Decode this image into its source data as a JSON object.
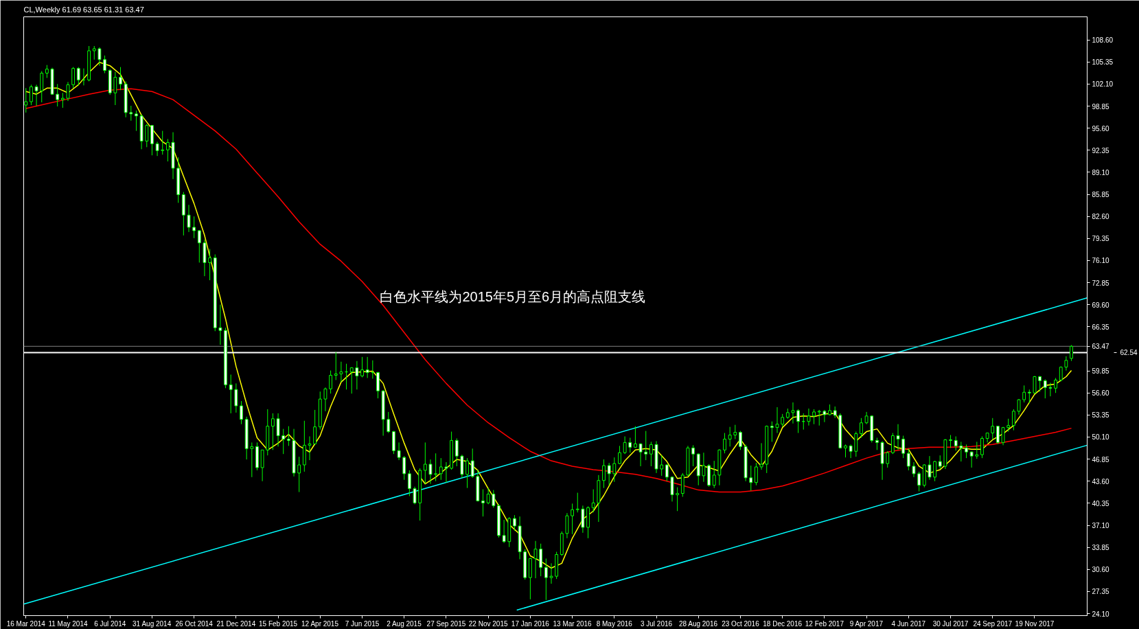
{
  "chart_data": {
    "type": "candlestick",
    "title": "CL,Weekly  61.69 63.65 61.31 63.47",
    "color": "#00ff00",
    "annotations": [
      "白色水平线为2015年5月至6月的高点阻支线"
    ],
    "x": [
      "2014-03-16",
      "2014-03-23",
      "2014-03-30",
      "2014-04-06",
      "2014-04-13",
      "2014-04-20",
      "2014-04-27",
      "2014-05-04",
      "2014-05-11",
      "2014-05-18",
      "2014-05-25",
      "2014-06-01",
      "2014-06-08",
      "2014-06-15",
      "2014-06-22",
      "2014-06-29",
      "2014-07-06",
      "2014-07-13",
      "2014-07-20",
      "2014-07-27",
      "2014-08-03",
      "2014-08-10",
      "2014-08-17",
      "2014-08-24",
      "2014-08-31",
      "2014-09-07",
      "2014-09-14",
      "2014-09-21",
      "2014-09-28",
      "2014-10-05",
      "2014-10-12",
      "2014-10-19",
      "2014-10-26",
      "2014-11-02",
      "2014-11-09",
      "2014-11-16",
      "2014-11-23",
      "2014-11-30",
      "2014-12-07",
      "2014-12-14",
      "2014-12-21",
      "2014-12-28",
      "2015-01-04",
      "2015-01-11",
      "2015-01-18",
      "2015-01-25",
      "2015-02-01",
      "2015-02-08",
      "2015-02-15",
      "2015-02-22",
      "2015-03-01",
      "2015-03-08",
      "2015-03-15",
      "2015-03-22",
      "2015-03-29",
      "2015-04-05",
      "2015-04-12",
      "2015-04-19",
      "2015-04-26",
      "2015-05-03",
      "2015-05-10",
      "2015-05-17",
      "2015-05-24",
      "2015-05-31",
      "2015-06-07",
      "2015-06-14",
      "2015-06-21",
      "2015-06-28",
      "2015-07-05",
      "2015-07-12",
      "2015-07-19",
      "2015-07-26",
      "2015-08-02",
      "2015-08-09",
      "2015-08-16",
      "2015-08-23",
      "2015-08-30",
      "2015-09-06",
      "2015-09-13",
      "2015-09-20",
      "2015-09-27",
      "2015-10-04",
      "2015-10-11",
      "2015-10-18",
      "2015-10-25",
      "2015-11-01",
      "2015-11-08",
      "2015-11-15",
      "2015-11-22",
      "2015-11-29",
      "2015-12-06",
      "2015-12-13",
      "2015-12-20",
      "2015-12-27",
      "2016-01-03",
      "2016-01-10",
      "2016-01-17",
      "2016-01-24",
      "2016-01-31",
      "2016-02-07",
      "2016-02-14",
      "2016-02-21",
      "2016-02-28",
      "2016-03-06",
      "2016-03-13",
      "2016-03-20",
      "2016-03-27",
      "2016-04-03",
      "2016-04-10",
      "2016-04-17",
      "2016-04-24",
      "2016-05-01",
      "2016-05-08",
      "2016-05-15",
      "2016-05-22",
      "2016-05-29",
      "2016-06-05",
      "2016-06-12",
      "2016-06-19",
      "2016-06-26",
      "2016-07-03",
      "2016-07-10",
      "2016-07-17",
      "2016-07-24",
      "2016-07-31",
      "2016-08-07",
      "2016-08-14",
      "2016-08-21",
      "2016-08-28",
      "2016-09-04",
      "2016-09-11",
      "2016-09-18",
      "2016-09-25",
      "2016-10-02",
      "2016-10-09",
      "2016-10-16",
      "2016-10-23",
      "2016-10-30",
      "2016-11-06",
      "2016-11-13",
      "2016-11-20",
      "2016-11-27",
      "2016-12-04",
      "2016-12-11",
      "2016-12-18",
      "2016-12-25",
      "2017-01-01",
      "2017-01-08",
      "2017-01-15",
      "2017-01-22",
      "2017-01-29",
      "2017-02-05",
      "2017-02-12",
      "2017-02-19",
      "2017-02-26",
      "2017-03-05",
      "2017-03-12",
      "2017-03-19",
      "2017-03-26",
      "2017-04-02",
      "2017-04-09",
      "2017-04-16",
      "2017-04-23",
      "2017-04-30",
      "2017-05-07",
      "2017-05-14",
      "2017-05-21",
      "2017-05-28",
      "2017-06-04",
      "2017-06-11",
      "2017-06-18",
      "2017-06-25",
      "2017-07-02",
      "2017-07-09",
      "2017-07-16",
      "2017-07-23",
      "2017-07-30",
      "2017-08-06",
      "2017-08-13",
      "2017-08-20",
      "2017-08-27",
      "2017-09-03",
      "2017-09-10",
      "2017-09-17",
      "2017-09-24",
      "2017-10-01",
      "2017-10-08",
      "2017-10-15",
      "2017-10-22",
      "2017-10-29",
      "2017-11-05",
      "2017-11-12",
      "2017-11-19",
      "2017-11-26",
      "2017-12-03",
      "2017-12-10",
      "2017-12-17",
      "2017-12-24",
      "2017-12-31",
      "2018-01-07"
    ],
    "ohlc": [
      [
        99.0,
        101.5,
        97.9,
        99.5
      ],
      [
        99.5,
        102.0,
        99.0,
        101.7
      ],
      [
        101.7,
        102.0,
        98.9,
        101.1
      ],
      [
        101.1,
        104.0,
        99.4,
        103.7
      ],
      [
        103.7,
        104.9,
        103.0,
        104.3
      ],
      [
        104.3,
        104.5,
        100.5,
        100.6
      ],
      [
        100.6,
        102.1,
        98.8,
        99.8
      ],
      [
        99.8,
        100.8,
        98.6,
        100.0
      ],
      [
        100.0,
        102.4,
        99.6,
        102.0
      ],
      [
        102.0,
        104.6,
        101.5,
        104.4
      ],
      [
        104.4,
        104.6,
        101.9,
        102.7
      ],
      [
        102.7,
        104.4,
        101.9,
        102.7
      ],
      [
        102.7,
        107.7,
        102.5,
        107.0
      ],
      [
        107.0,
        107.7,
        105.7,
        107.3
      ],
      [
        107.3,
        107.5,
        104.8,
        105.7
      ],
      [
        105.7,
        106.3,
        103.7,
        104.1
      ],
      [
        104.1,
        104.3,
        100.5,
        100.8
      ],
      [
        100.8,
        103.9,
        99.0,
        103.1
      ],
      [
        103.1,
        104.6,
        101.2,
        102.1
      ],
      [
        102.1,
        102.5,
        97.2,
        97.9
      ],
      [
        97.9,
        98.9,
        96.7,
        97.7
      ],
      [
        97.7,
        98.2,
        95.2,
        97.4
      ],
      [
        97.4,
        97.6,
        92.5,
        93.7
      ],
      [
        93.7,
        96.2,
        92.8,
        96.0
      ],
      [
        96.0,
        96.0,
        91.6,
        93.3
      ],
      [
        93.3,
        93.6,
        91.5,
        92.3
      ],
      [
        92.3,
        95.2,
        91.7,
        92.4
      ],
      [
        92.4,
        94.0,
        90.7,
        93.5
      ],
      [
        93.5,
        95.0,
        88.1,
        89.7
      ],
      [
        89.7,
        91.3,
        84.6,
        85.8
      ],
      [
        85.8,
        86.2,
        79.8,
        82.8
      ],
      [
        82.8,
        84.3,
        80.3,
        81.0
      ],
      [
        81.0,
        82.6,
        79.4,
        80.5
      ],
      [
        80.5,
        80.6,
        75.8,
        78.7
      ],
      [
        78.7,
        79.2,
        73.8,
        75.8
      ],
      [
        75.8,
        77.8,
        73.2,
        76.5
      ],
      [
        76.5,
        77.0,
        65.7,
        66.2
      ],
      [
        66.2,
        69.6,
        63.7,
        65.8
      ],
      [
        65.8,
        66.2,
        57.3,
        57.8
      ],
      [
        57.8,
        59.3,
        53.6,
        57.1
      ],
      [
        57.1,
        58.0,
        53.7,
        54.7
      ],
      [
        54.7,
        55.4,
        52.0,
        52.7
      ],
      [
        52.7,
        53.1,
        46.8,
        48.4
      ],
      [
        48.4,
        49.3,
        44.2,
        48.7
      ],
      [
        48.7,
        49.3,
        45.2,
        45.6
      ],
      [
        45.6,
        48.2,
        43.6,
        48.2
      ],
      [
        48.2,
        54.2,
        47.4,
        51.7
      ],
      [
        51.7,
        53.6,
        48.2,
        52.8
      ],
      [
        52.8,
        53.6,
        48.7,
        50.3
      ],
      [
        50.3,
        51.3,
        47.6,
        49.8
      ],
      [
        49.8,
        51.7,
        48.8,
        49.6
      ],
      [
        49.6,
        51.3,
        44.3,
        44.8
      ],
      [
        44.8,
        47.2,
        42.0,
        46.0
      ],
      [
        46.0,
        52.5,
        45.0,
        48.9
      ],
      [
        48.9,
        50.2,
        46.7,
        49.1
      ],
      [
        49.1,
        54.1,
        49.0,
        51.6
      ],
      [
        51.6,
        56.8,
        51.2,
        55.7
      ],
      [
        55.7,
        57.4,
        53.9,
        57.2
      ],
      [
        57.2,
        59.9,
        56.5,
        59.2
      ],
      [
        59.2,
        62.6,
        58.5,
        59.4
      ],
      [
        59.4,
        61.2,
        58.2,
        59.7
      ],
      [
        59.7,
        60.9,
        57.1,
        59.7
      ],
      [
        59.7,
        60.4,
        56.5,
        60.3
      ],
      [
        60.3,
        61.3,
        57.1,
        59.1
      ],
      [
        59.1,
        61.9,
        58.9,
        60.0
      ],
      [
        60.0,
        61.9,
        58.8,
        59.6
      ],
      [
        59.6,
        61.4,
        58.7,
        59.6
      ],
      [
        59.6,
        59.7,
        55.8,
        56.9
      ],
      [
        56.9,
        57.0,
        50.3,
        52.7
      ],
      [
        52.7,
        53.8,
        50.7,
        50.9
      ],
      [
        50.9,
        51.0,
        47.6,
        48.1
      ],
      [
        48.1,
        49.3,
        46.7,
        47.1
      ],
      [
        47.1,
        47.3,
        43.8,
        44.7
      ],
      [
        44.7,
        45.2,
        41.4,
        42.5
      ],
      [
        42.5,
        42.8,
        40.2,
        40.4
      ],
      [
        40.4,
        45.5,
        37.8,
        45.2
      ],
      [
        45.2,
        49.3,
        43.2,
        46.1
      ],
      [
        46.1,
        46.8,
        43.2,
        44.6
      ],
      [
        44.6,
        47.7,
        43.6,
        44.7
      ],
      [
        44.7,
        47.0,
        43.8,
        45.7
      ],
      [
        45.7,
        46.4,
        43.4,
        45.5
      ],
      [
        45.5,
        50.9,
        45.3,
        49.6
      ],
      [
        49.6,
        49.9,
        45.8,
        47.3
      ],
      [
        47.3,
        47.5,
        44.1,
        44.6
      ],
      [
        44.6,
        47.0,
        42.6,
        46.6
      ],
      [
        46.6,
        48.4,
        44.1,
        44.3
      ],
      [
        44.3,
        45.3,
        40.6,
        40.7
      ],
      [
        40.7,
        42.4,
        38.4,
        40.4
      ],
      [
        40.4,
        42.6,
        40.2,
        41.7
      ],
      [
        41.7,
        42.3,
        39.7,
        40.0
      ],
      [
        40.0,
        40.2,
        35.3,
        35.6
      ],
      [
        35.6,
        37.9,
        34.5,
        34.7
      ],
      [
        34.7,
        38.3,
        33.9,
        38.1
      ],
      [
        38.1,
        38.6,
        36.3,
        37.0
      ],
      [
        37.0,
        38.4,
        32.1,
        33.2
      ],
      [
        33.2,
        33.6,
        29.1,
        29.4
      ],
      [
        29.4,
        32.3,
        26.2,
        32.2
      ],
      [
        32.2,
        34.8,
        29.3,
        33.6
      ],
      [
        33.6,
        34.4,
        29.6,
        30.9
      ],
      [
        30.9,
        32.2,
        26.1,
        29.4
      ],
      [
        29.4,
        31.5,
        28.5,
        29.6
      ],
      [
        29.6,
        33.2,
        29.2,
        32.8
      ],
      [
        32.8,
        36.2,
        32.6,
        35.9
      ],
      [
        35.9,
        38.9,
        35.2,
        38.5
      ],
      [
        38.5,
        40.3,
        35.8,
        39.4
      ],
      [
        39.4,
        41.9,
        39.0,
        39.5
      ],
      [
        39.5,
        40.0,
        36.0,
        36.8
      ],
      [
        36.8,
        39.9,
        35.2,
        39.7
      ],
      [
        39.7,
        42.4,
        39.0,
        40.4
      ],
      [
        40.4,
        44.5,
        37.6,
        43.7
      ],
      [
        43.7,
        46.8,
        42.6,
        45.9
      ],
      [
        45.9,
        46.3,
        43.0,
        44.7
      ],
      [
        44.7,
        47.1,
        43.5,
        46.2
      ],
      [
        46.2,
        48.8,
        46.1,
        47.8
      ],
      [
        47.8,
        50.2,
        47.6,
        49.3
      ],
      [
        49.3,
        50.0,
        47.8,
        48.6
      ],
      [
        48.6,
        51.7,
        48.5,
        49.1
      ],
      [
        49.1,
        49.2,
        45.8,
        47.9
      ],
      [
        47.9,
        51.0,
        46.7,
        47.6
      ],
      [
        47.6,
        49.4,
        45.8,
        49.0
      ],
      [
        49.0,
        49.5,
        44.8,
        45.4
      ],
      [
        45.4,
        47.4,
        44.4,
        46.0
      ],
      [
        46.0,
        46.1,
        43.6,
        44.2
      ],
      [
        44.2,
        44.3,
        40.6,
        41.6
      ],
      [
        41.6,
        42.7,
        39.2,
        41.8
      ],
      [
        41.8,
        44.8,
        41.3,
        44.5
      ],
      [
        44.5,
        48.8,
        44.4,
        48.5
      ],
      [
        48.5,
        48.9,
        45.8,
        47.6
      ],
      [
        47.6,
        47.7,
        43.0,
        44.4
      ],
      [
        44.4,
        47.8,
        43.5,
        45.9
      ],
      [
        45.9,
        46.1,
        42.8,
        43.0
      ],
      [
        43.0,
        46.6,
        42.6,
        44.5
      ],
      [
        44.5,
        48.3,
        43.0,
        48.2
      ],
      [
        48.2,
        50.7,
        47.7,
        49.8
      ],
      [
        49.8,
        51.6,
        48.7,
        50.4
      ],
      [
        50.4,
        51.9,
        49.8,
        50.8
      ],
      [
        50.8,
        51.0,
        48.2,
        48.7
      ],
      [
        48.7,
        49.0,
        43.6,
        44.1
      ],
      [
        44.1,
        45.9,
        42.2,
        43.4
      ],
      [
        43.4,
        46.3,
        43.0,
        45.7
      ],
      [
        45.7,
        49.2,
        45.3,
        46.1
      ],
      [
        46.1,
        51.8,
        44.8,
        51.7
      ],
      [
        51.7,
        52.4,
        49.4,
        51.5
      ],
      [
        51.5,
        54.5,
        50.7,
        52.0
      ],
      [
        52.0,
        53.5,
        51.6,
        53.0
      ],
      [
        53.0,
        54.3,
        52.8,
        53.7
      ],
      [
        53.7,
        55.2,
        52.1,
        54.0
      ],
      [
        54.0,
        54.2,
        50.7,
        52.4
      ],
      [
        52.4,
        53.6,
        51.2,
        52.4
      ],
      [
        52.4,
        54.3,
        51.8,
        53.2
      ],
      [
        53.2,
        54.2,
        52.0,
        53.8
      ],
      [
        53.8,
        54.1,
        51.8,
        53.9
      ],
      [
        53.9,
        54.1,
        52.3,
        53.4
      ],
      [
        53.4,
        54.9,
        53.3,
        54.0
      ],
      [
        54.0,
        54.6,
        52.9,
        53.3
      ],
      [
        53.3,
        53.6,
        48.4,
        48.5
      ],
      [
        48.5,
        49.0,
        47.1,
        48.8
      ],
      [
        48.8,
        49.0,
        47.0,
        48.0
      ],
      [
        48.0,
        50.9,
        47.2,
        50.6
      ],
      [
        50.6,
        52.9,
        50.0,
        52.2
      ],
      [
        52.2,
        53.8,
        52.0,
        53.2
      ],
      [
        53.2,
        53.3,
        49.3,
        49.6
      ],
      [
        49.6,
        50.0,
        48.2,
        49.3
      ],
      [
        49.3,
        49.5,
        43.8,
        46.2
      ],
      [
        46.2,
        48.0,
        45.6,
        47.8
      ],
      [
        47.8,
        50.7,
        47.6,
        50.3
      ],
      [
        50.3,
        52.0,
        48.2,
        49.8
      ],
      [
        49.8,
        50.3,
        47.0,
        47.7
      ],
      [
        47.7,
        48.4,
        45.2,
        45.8
      ],
      [
        45.8,
        46.4,
        44.2,
        44.7
      ],
      [
        44.7,
        45.0,
        42.1,
        43.0
      ],
      [
        43.0,
        46.1,
        42.7,
        46.0
      ],
      [
        46.0,
        47.3,
        43.8,
        44.2
      ],
      [
        44.2,
        46.6,
        43.6,
        46.5
      ],
      [
        46.5,
        47.4,
        45.4,
        45.8
      ],
      [
        45.8,
        49.8,
        45.4,
        49.7
      ],
      [
        49.7,
        50.4,
        48.5,
        49.6
      ],
      [
        49.6,
        50.2,
        48.1,
        48.8
      ],
      [
        48.8,
        49.4,
        46.5,
        48.5
      ],
      [
        48.5,
        49.0,
        47.0,
        47.9
      ],
      [
        47.9,
        48.0,
        45.6,
        47.3
      ],
      [
        47.3,
        49.4,
        46.9,
        47.5
      ],
      [
        47.5,
        50.2,
        47.0,
        49.9
      ],
      [
        49.9,
        50.7,
        49.3,
        50.7
      ],
      [
        50.7,
        52.9,
        49.8,
        51.7
      ],
      [
        51.7,
        51.7,
        49.1,
        49.3
      ],
      [
        49.3,
        51.6,
        48.9,
        51.5
      ],
      [
        51.5,
        52.8,
        50.9,
        51.8
      ],
      [
        51.8,
        54.2,
        51.1,
        53.9
      ],
      [
        53.9,
        55.7,
        53.4,
        55.6
      ],
      [
        55.6,
        57.7,
        55.2,
        56.7
      ],
      [
        56.7,
        57.1,
        55.1,
        56.6
      ],
      [
        56.6,
        59.1,
        56.5,
        59.0
      ],
      [
        59.0,
        59.1,
        56.8,
        58.4
      ],
      [
        58.4,
        58.6,
        55.8,
        57.4
      ],
      [
        57.4,
        58.1,
        56.1,
        57.3
      ],
      [
        57.3,
        58.8,
        56.6,
        58.5
      ],
      [
        58.5,
        60.5,
        58.3,
        60.4
      ],
      [
        60.4,
        62.0,
        59.9,
        61.4
      ],
      [
        61.69,
        63.65,
        61.31,
        63.47
      ]
    ],
    "series": [
      {
        "type": "line",
        "color": "#ffff00",
        "x": [
          "2014-03-16",
          "2014-03-30",
          "2014-04-13",
          "2014-04-27",
          "2014-05-11",
          "2014-05-25",
          "2014-06-08",
          "2014-06-22",
          "2014-07-06",
          "2014-07-20",
          "2014-08-03",
          "2014-08-17",
          "2014-08-31",
          "2014-09-14",
          "2014-09-28",
          "2014-10-12",
          "2014-10-26",
          "2014-11-09",
          "2014-12-07",
          "2014-12-21",
          "2015-01-04",
          "2015-01-18",
          "2015-02-01",
          "2015-02-15",
          "2015-03-01",
          "2015-03-15",
          "2015-03-29",
          "2015-04-12",
          "2015-04-26",
          "2015-05-10",
          "2015-05-24",
          "2015-06-07",
          "2015-06-21",
          "2015-07-05",
          "2015-07-19",
          "2015-08-02",
          "2015-08-16",
          "2015-08-30",
          "2015-09-13",
          "2015-09-27",
          "2015-10-11",
          "2015-10-25",
          "2015-11-08",
          "2015-11-22",
          "2015-12-06",
          "2015-12-20",
          "2016-01-03",
          "2016-01-17",
          "2016-01-31",
          "2016-02-14",
          "2016-02-28",
          "2016-03-13",
          "2016-03-27",
          "2016-04-10",
          "2016-04-24",
          "2016-05-08",
          "2016-05-22",
          "2016-06-05",
          "2016-06-19",
          "2016-07-03",
          "2016-07-17",
          "2016-07-31",
          "2016-08-14",
          "2016-08-28",
          "2016-09-11",
          "2016-09-25",
          "2016-10-09",
          "2016-10-23",
          "2016-11-06",
          "2016-11-20",
          "2016-12-04",
          "2016-12-18",
          "2017-01-01",
          "2017-01-15",
          "2017-01-29",
          "2017-02-12",
          "2017-02-26",
          "2017-03-12",
          "2017-03-26",
          "2017-04-09",
          "2017-04-23",
          "2017-05-07",
          "2017-05-21",
          "2017-06-04",
          "2017-06-18",
          "2017-07-02",
          "2017-07-16",
          "2017-07-30",
          "2017-08-13",
          "2017-08-27",
          "2017-09-10",
          "2017-09-24",
          "2017-10-08",
          "2017-10-22",
          "2017-11-05",
          "2017-11-19",
          "2017-12-03",
          "2017-12-17",
          "2017-12-31",
          "2018-01-07"
        ],
        "values": [
          101.0,
          100.6,
          101.5,
          101.5,
          100.8,
          102.0,
          103.8,
          105.3,
          104.8,
          103.5,
          100.5,
          97.5,
          95.5,
          93.6,
          92.6,
          88.5,
          84.5,
          79.8,
          67.5,
          60.5,
          55.0,
          50.0,
          48.2,
          49.2,
          50.5,
          48.8,
          47.9,
          50.3,
          54.6,
          58.2,
          59.6,
          59.7,
          59.8,
          58.0,
          53.5,
          49.2,
          45.3,
          43.2,
          44.2,
          45.5,
          46.8,
          46.5,
          45.2,
          42.5,
          40.0,
          37.2,
          35.8,
          32.6,
          31.8,
          30.8,
          31.5,
          35.2,
          38.0,
          39.2,
          41.5,
          44.3,
          46.6,
          48.2,
          48.4,
          48.2,
          46.5,
          44.0,
          44.2,
          46.0,
          45.6,
          45.1,
          47.6,
          49.8,
          47.5,
          45.8,
          48.0,
          51.5,
          53.0,
          53.2,
          53.1,
          53.5,
          53.6,
          51.2,
          49.5,
          50.9,
          51.3,
          49.2,
          48.5,
          48.3,
          45.8,
          44.8,
          45.3,
          46.7,
          48.5,
          48.3,
          48.3,
          49.7,
          50.6,
          51.8,
          54.0,
          56.4,
          57.7,
          57.9,
          59.0,
          59.9
        ]
      },
      {
        "type": "line",
        "color": "#ff0000",
        "x": [
          "2014-03-16",
          "2014-04-13",
          "2014-05-11",
          "2014-06-08",
          "2014-07-06",
          "2014-08-03",
          "2014-08-31",
          "2014-09-28",
          "2014-10-26",
          "2014-11-23",
          "2014-12-21",
          "2015-01-18",
          "2015-02-15",
          "2015-03-15",
          "2015-04-12",
          "2015-05-10",
          "2015-06-07",
          "2015-07-05",
          "2015-08-02",
          "2015-08-30",
          "2015-09-27",
          "2015-10-25",
          "2015-11-22",
          "2015-12-20",
          "2016-01-17",
          "2016-02-14",
          "2016-03-13",
          "2016-04-10",
          "2016-05-08",
          "2016-06-05",
          "2016-07-03",
          "2016-07-31",
          "2016-08-28",
          "2016-09-25",
          "2016-10-23",
          "2016-11-20",
          "2016-12-18",
          "2017-01-15",
          "2017-02-12",
          "2017-03-12",
          "2017-04-09",
          "2017-05-07",
          "2017-06-04",
          "2017-07-02",
          "2017-07-30",
          "2017-08-27",
          "2017-09-24",
          "2017-10-22",
          "2017-11-19",
          "2017-12-17",
          "2018-01-07"
        ],
        "values": [
          98.5,
          99.2,
          99.9,
          100.6,
          101.2,
          101.4,
          101.0,
          99.8,
          97.5,
          95.2,
          92.5,
          89.0,
          85.5,
          81.8,
          78.5,
          76.0,
          73.0,
          69.5,
          65.5,
          61.5,
          58.0,
          54.8,
          52.2,
          50.0,
          48.0,
          46.6,
          45.8,
          45.3,
          45.0,
          44.6,
          44.0,
          43.2,
          42.3,
          42.0,
          42.0,
          42.3,
          42.9,
          43.8,
          44.8,
          45.9,
          47.0,
          47.9,
          48.4,
          48.6,
          48.6,
          48.7,
          49.0,
          49.6,
          50.2,
          50.8,
          51.4
        ]
      },
      {
        "type": "line",
        "color": "#00ffff",
        "x": [
          "2014-03-13",
          "2018-01-28"
        ],
        "values": [
          25.5,
          70.6
        ]
      },
      {
        "type": "line",
        "color": "#00ffff",
        "x": [
          "2015-12-30",
          "2018-01-28"
        ],
        "values": [
          24.6,
          48.9
        ]
      }
    ],
    "ref_lines": [
      {
        "axis": "y",
        "value": 63.47,
        "label": "63.47",
        "color": "#808080"
      },
      {
        "axis": "y",
        "value": 62.54,
        "label": "62.54",
        "color": "#ffffff"
      }
    ],
    "xlim": [
      "2014-03-13",
      "2018-01-28"
    ],
    "xticks": [
      {
        "value": "2014-03-16",
        "label": "16 Mar 2014"
      },
      {
        "value": "2014-05-11",
        "label": "11 May 2014"
      },
      {
        "value": "2014-07-06",
        "label": "6 Jul 2014"
      },
      {
        "value": "2014-08-31",
        "label": "31 Aug 2014"
      },
      {
        "value": "2014-10-26",
        "label": "26 Oct 2014"
      },
      {
        "value": "2014-12-21",
        "label": "21 Dec 2014"
      },
      {
        "value": "2015-02-15",
        "label": "15 Feb 2015"
      },
      {
        "value": "2015-04-12",
        "label": "12 Apr 2015"
      },
      {
        "value": "2015-06-07",
        "label": "7 Jun 2015"
      },
      {
        "value": "2015-08-02",
        "label": "2 Aug 2015"
      },
      {
        "value": "2015-09-27",
        "label": "27 Sep 2015"
      },
      {
        "value": "2015-11-22",
        "label": "22 Nov 2015"
      },
      {
        "value": "2016-01-17",
        "label": "17 Jan 2016"
      },
      {
        "value": "2016-03-13",
        "label": "13 Mar 2016"
      },
      {
        "value": "2016-05-08",
        "label": "8 May 2016"
      },
      {
        "value": "2016-07-03",
        "label": "3 Jul 2016"
      },
      {
        "value": "2016-08-28",
        "label": "28 Aug 2016"
      },
      {
        "value": "2016-10-23",
        "label": "23 Oct 2016"
      },
      {
        "value": "2016-12-18",
        "label": "18 Dec 2016"
      },
      {
        "value": "2017-02-12",
        "label": "12 Feb 2017"
      },
      {
        "value": "2017-04-09",
        "label": "9 Apr 2017"
      },
      {
        "value": "2017-06-04",
        "label": "4 Jun 2017"
      },
      {
        "value": "2017-07-30",
        "label": "30 Jul 2017"
      },
      {
        "value": "2017-09-24",
        "label": "24 Sep 2017"
      },
      {
        "value": "2017-11-19",
        "label": "19 Nov 2017"
      }
    ],
    "ylim": [
      23.8,
      112.0
    ],
    "yticks": [
      {
        "value": 24.1,
        "label": "24.10"
      },
      {
        "value": 27.35,
        "label": "27.35"
      },
      {
        "value": 30.6,
        "label": "30.60"
      },
      {
        "value": 33.85,
        "label": "33.85"
      },
      {
        "value": 37.1,
        "label": "37.10"
      },
      {
        "value": 40.35,
        "label": "40.35"
      },
      {
        "value": 43.6,
        "label": "43.60"
      },
      {
        "value": 46.85,
        "label": "46.85"
      },
      {
        "value": 50.1,
        "label": "50.10"
      },
      {
        "value": 53.35,
        "label": "53.35"
      },
      {
        "value": 56.6,
        "label": "56.60"
      },
      {
        "value": 59.85,
        "label": "59.85"
      },
      {
        "value": 66.35,
        "label": "66.35"
      },
      {
        "value": 69.6,
        "label": "69.60"
      },
      {
        "value": 72.85,
        "label": "72.85"
      },
      {
        "value": 76.1,
        "label": "76.10"
      },
      {
        "value": 79.35,
        "label": "79.35"
      },
      {
        "value": 82.6,
        "label": "82.60"
      },
      {
        "value": 85.85,
        "label": "85.85"
      },
      {
        "value": 89.1,
        "label": "89.10"
      },
      {
        "value": 92.35,
        "label": "92.35"
      },
      {
        "value": 95.6,
        "label": "95.60"
      },
      {
        "value": 98.85,
        "label": "98.85"
      },
      {
        "value": 102.1,
        "label": "102.10"
      },
      {
        "value": 105.35,
        "label": "105.35"
      },
      {
        "value": 108.6,
        "label": "108.60"
      }
    ],
    "grid": false
  }
}
